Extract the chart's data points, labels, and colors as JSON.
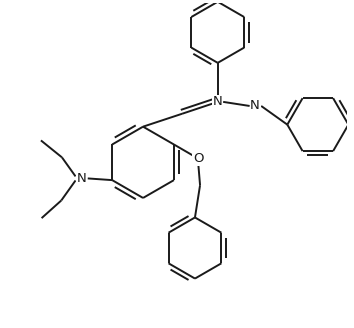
{
  "bg_color": "#ffffff",
  "line_color": "#1a1a1a",
  "line_width": 1.4,
  "figsize": [
    3.54,
    3.28
  ],
  "dpi": 100,
  "xlim": [
    -1.5,
    8.5
  ],
  "ylim": [
    -1.0,
    8.5
  ]
}
